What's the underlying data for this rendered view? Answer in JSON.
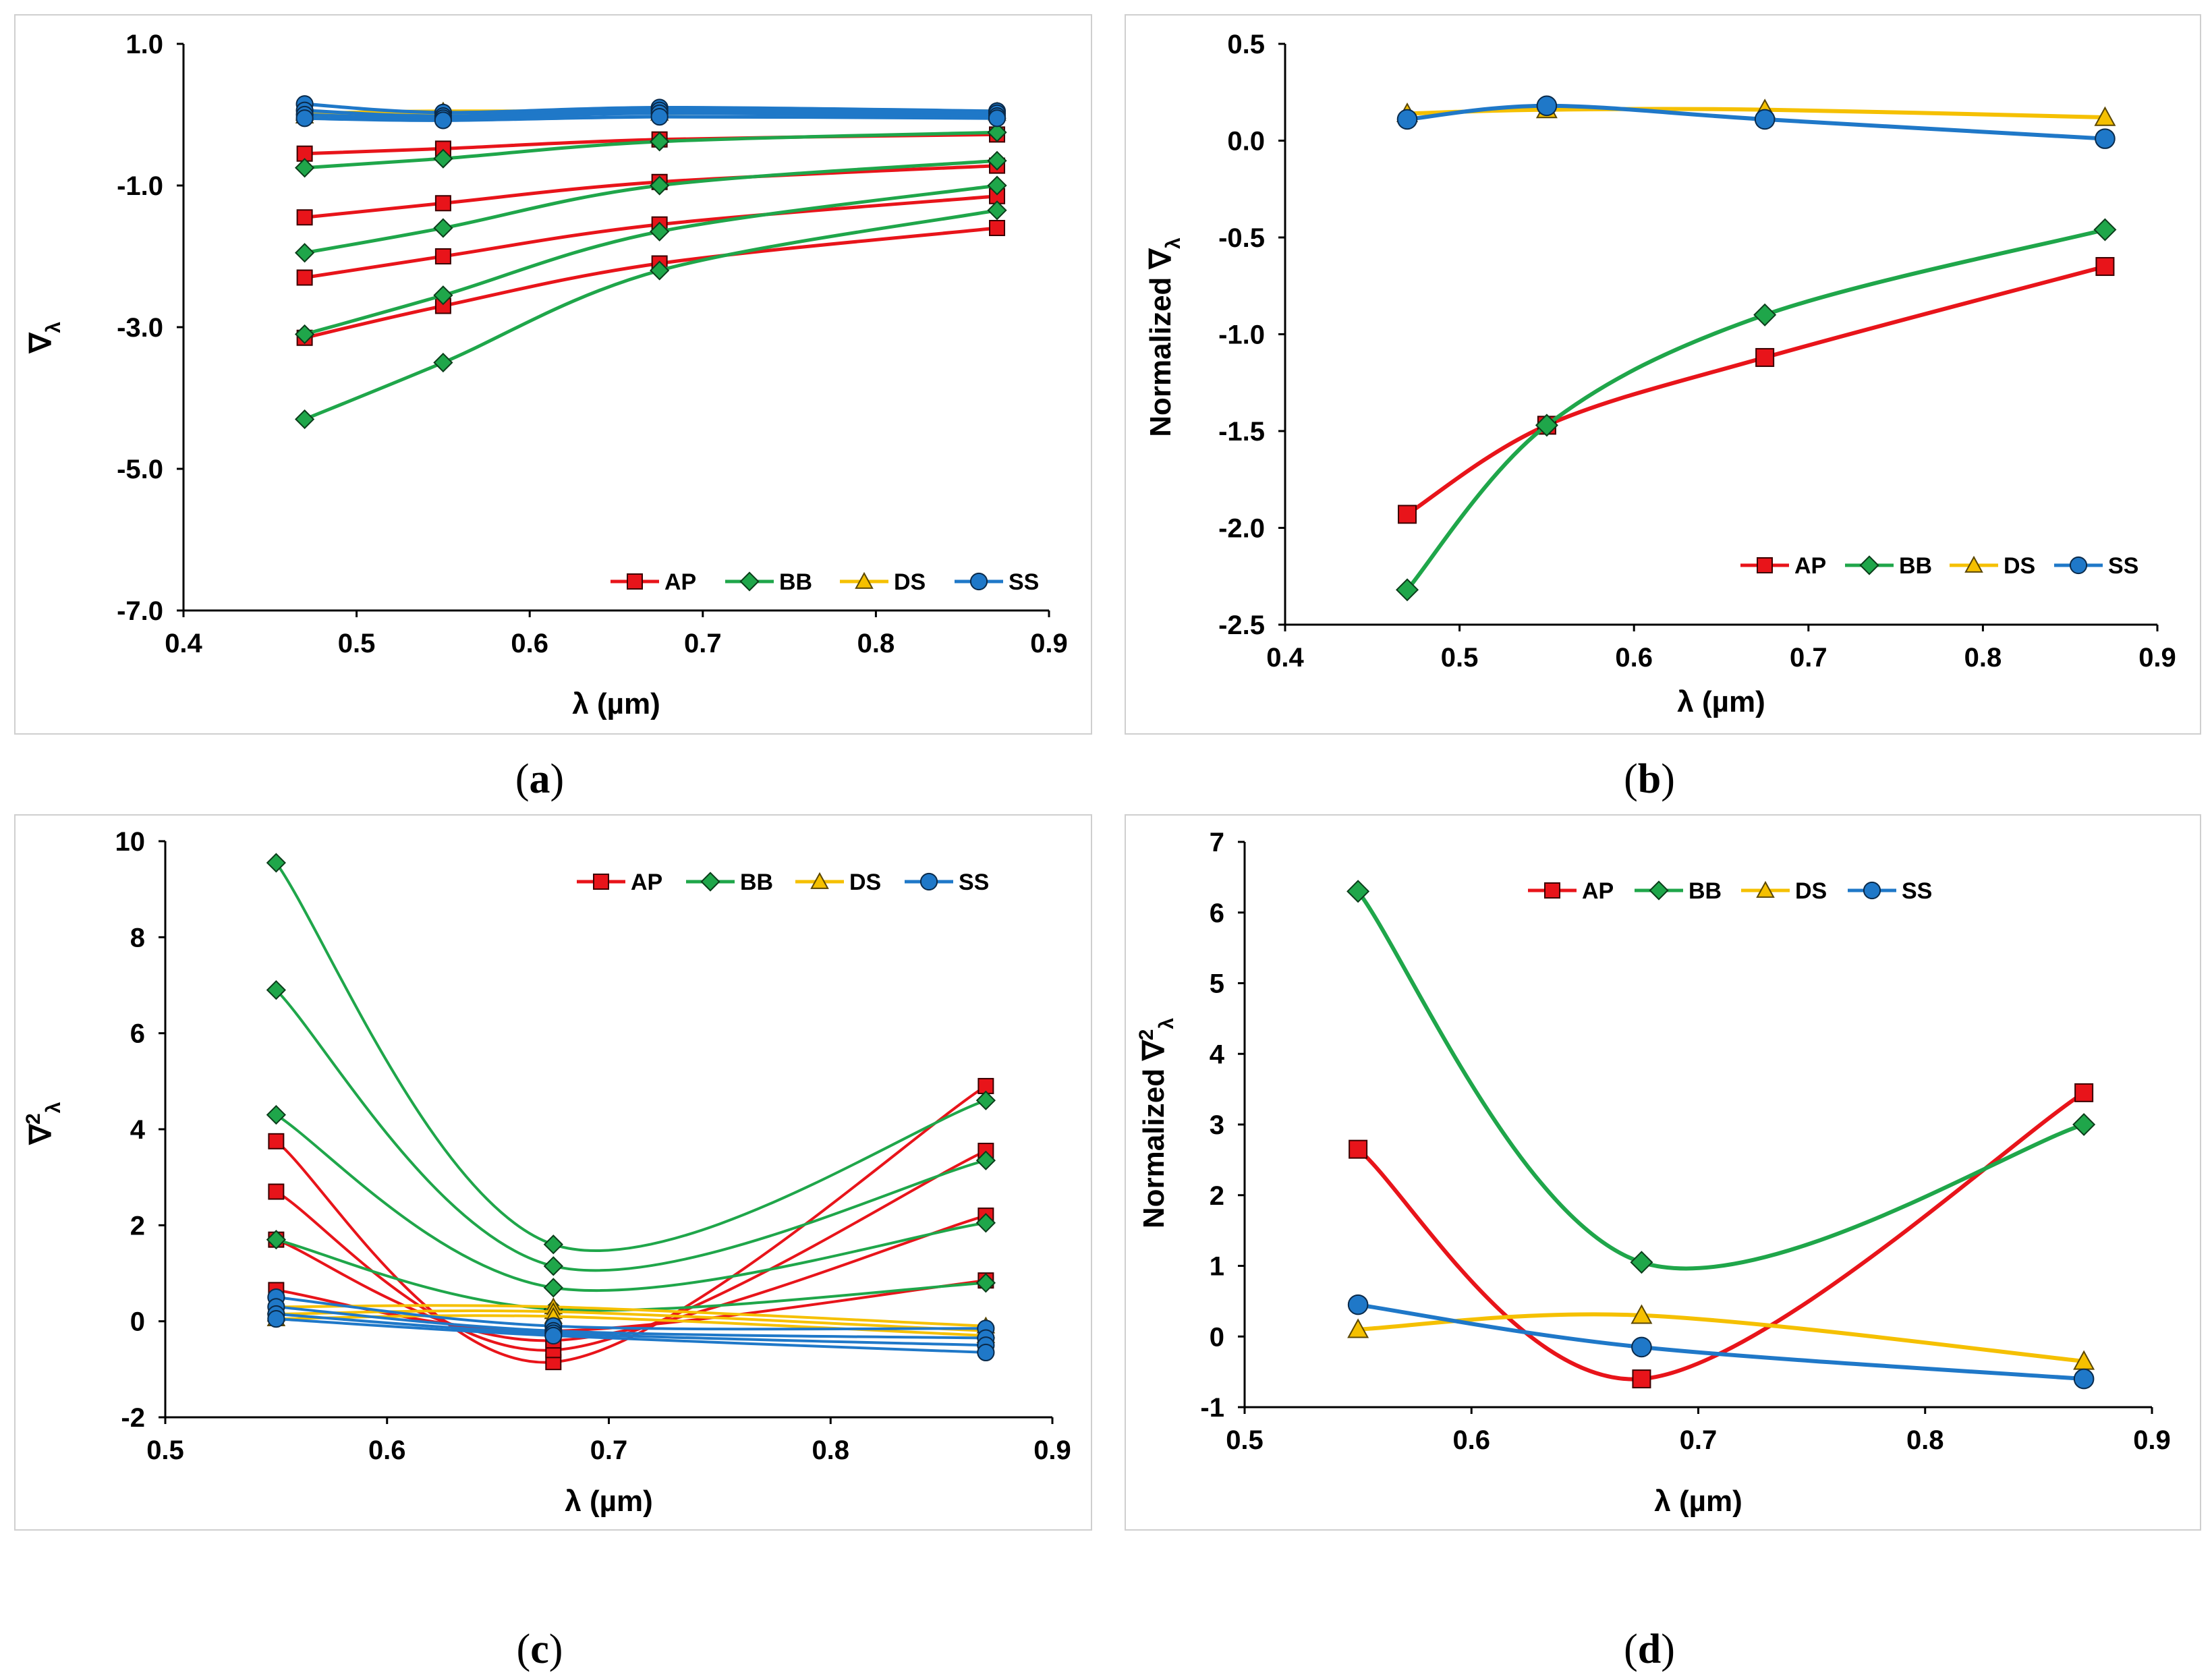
{
  "colors": {
    "AP": "#e8141a",
    "BB": "#1fa64a",
    "DS": "#f5c000",
    "SS": "#1f78c8"
  },
  "chart_data": [
    {
      "type": "line",
      "caption": "a",
      "xlabel": "λ (µm)",
      "ylabel": "∇",
      "ylabel_sub": "λ",
      "xlim": [
        0.4,
        0.9
      ],
      "ylim": [
        -7.0,
        1.0
      ],
      "xticks": [
        "0.4",
        "0.5",
        "0.6",
        "0.7",
        "0.8",
        "0.9"
      ],
      "yticks": [
        "1.0",
        "-1.0",
        "-3.0",
        "-5.0",
        "-7.0"
      ],
      "ytick_values": [
        1.0,
        -1.0,
        -3.0,
        -5.0,
        -7.0
      ],
      "x": [
        0.47,
        0.55,
        0.675,
        0.87
      ],
      "legend": [
        "AP",
        "BB",
        "DS",
        "SS"
      ],
      "series": [
        {
          "name": "AP",
          "values": [
            -0.55,
            -0.48,
            -0.35,
            -0.28
          ]
        },
        {
          "name": "AP",
          "values": [
            -1.45,
            -1.25,
            -0.95,
            -0.72
          ]
        },
        {
          "name": "AP",
          "values": [
            -2.3,
            -2.0,
            -1.55,
            -1.15
          ]
        },
        {
          "name": "AP",
          "values": [
            -3.15,
            -2.7,
            -2.1,
            -1.6
          ]
        },
        {
          "name": "BB",
          "values": [
            -0.75,
            -0.62,
            -0.38,
            -0.25
          ]
        },
        {
          "name": "BB",
          "values": [
            -1.95,
            -1.6,
            -1.0,
            -0.65
          ]
        },
        {
          "name": "BB",
          "values": [
            -3.1,
            -2.55,
            -1.65,
            -1.0
          ]
        },
        {
          "name": "BB",
          "values": [
            -4.3,
            -3.5,
            -2.2,
            -1.35
          ]
        },
        {
          "name": "DS",
          "values": [
            0.02,
            0.05,
            0.05,
            0.05
          ]
        },
        {
          "name": "DS",
          "values": [
            -0.02,
            0.02,
            0.02,
            0.02
          ]
        },
        {
          "name": "SS",
          "values": [
            0.15,
            0.03,
            0.1,
            0.05
          ]
        },
        {
          "name": "SS",
          "values": [
            0.06,
            -0.02,
            0.06,
            0.02
          ]
        },
        {
          "name": "SS",
          "values": [
            0.0,
            -0.05,
            0.02,
            -0.02
          ]
        },
        {
          "name": "SS",
          "values": [
            -0.05,
            -0.08,
            -0.03,
            -0.05
          ]
        }
      ]
    },
    {
      "type": "line",
      "caption": "b",
      "xlabel": "λ (µm)",
      "ylabel": "Normalized  ∇",
      "ylabel_sub": "λ",
      "xlim": [
        0.4,
        0.9
      ],
      "ylim": [
        -2.5,
        0.5
      ],
      "xticks": [
        "0.4",
        "0.5",
        "0.6",
        "0.7",
        "0.8",
        "0.9"
      ],
      "yticks": [
        "0.5",
        "0.0",
        "-0.5",
        "-1.0",
        "-1.5",
        "-2.0",
        "-2.5"
      ],
      "ytick_values": [
        0.5,
        0.0,
        -0.5,
        -1.0,
        -1.5,
        -2.0,
        -2.5
      ],
      "x": [
        0.47,
        0.55,
        0.675,
        0.87
      ],
      "legend": [
        "AP",
        "BB",
        "DS",
        "SS"
      ],
      "series": [
        {
          "name": "AP",
          "values": [
            -1.93,
            -1.47,
            -1.12,
            -0.65
          ]
        },
        {
          "name": "BB",
          "values": [
            -2.32,
            -1.47,
            -0.9,
            -0.46
          ]
        },
        {
          "name": "DS",
          "values": [
            0.14,
            0.16,
            0.16,
            0.12
          ]
        },
        {
          "name": "SS",
          "values": [
            0.11,
            0.18,
            0.11,
            0.01
          ]
        }
      ]
    },
    {
      "type": "line",
      "caption": "c",
      "xlabel": "λ (µm)",
      "ylabel": "∇",
      "ylabel_sup": "2",
      "ylabel_sub": "λ",
      "xlim": [
        0.5,
        0.9
      ],
      "ylim": [
        -2,
        10
      ],
      "xticks": [
        "0.5",
        "0.6",
        "0.7",
        "0.8",
        "0.9"
      ],
      "yticks": [
        "10",
        "8",
        "6",
        "4",
        "2",
        "0",
        "-2"
      ],
      "ytick_values": [
        10,
        8,
        6,
        4,
        2,
        0,
        -2
      ],
      "x": [
        0.55,
        0.675,
        0.87
      ],
      "legend": [
        "AP",
        "BB",
        "DS",
        "SS"
      ],
      "series": [
        {
          "name": "AP",
          "values": [
            3.75,
            -0.85,
            4.9
          ]
        },
        {
          "name": "AP",
          "values": [
            2.7,
            -0.6,
            3.55
          ]
        },
        {
          "name": "AP",
          "values": [
            1.7,
            -0.4,
            2.2
          ]
        },
        {
          "name": "AP",
          "values": [
            0.65,
            -0.2,
            0.85
          ]
        },
        {
          "name": "BB",
          "values": [
            9.55,
            1.6,
            4.6
          ]
        },
        {
          "name": "BB",
          "values": [
            6.9,
            1.15,
            3.35
          ]
        },
        {
          "name": "BB",
          "values": [
            4.3,
            0.7,
            2.05
          ]
        },
        {
          "name": "BB",
          "values": [
            1.7,
            0.25,
            0.8
          ]
        },
        {
          "name": "DS",
          "values": [
            0.3,
            0.3,
            -0.1
          ]
        },
        {
          "name": "DS",
          "values": [
            0.15,
            0.2,
            -0.2
          ]
        },
        {
          "name": "DS",
          "values": [
            0.05,
            0.1,
            -0.3
          ]
        },
        {
          "name": "SS",
          "values": [
            0.5,
            -0.1,
            -0.15
          ]
        },
        {
          "name": "SS",
          "values": [
            0.3,
            -0.2,
            -0.35
          ]
        },
        {
          "name": "SS",
          "values": [
            0.15,
            -0.25,
            -0.5
          ]
        },
        {
          "name": "SS",
          "values": [
            0.05,
            -0.3,
            -0.65
          ]
        }
      ]
    },
    {
      "type": "line",
      "caption": "d",
      "xlabel": "λ (µm)",
      "ylabel": "Normalized ∇",
      "ylabel_sup": "2",
      "ylabel_sub": "λ",
      "xlim": [
        0.5,
        0.9
      ],
      "ylim": [
        -1,
        7
      ],
      "xticks": [
        "0.5",
        "0.6",
        "0.7",
        "0.8",
        "0.9"
      ],
      "yticks": [
        "7",
        "6",
        "5",
        "4",
        "3",
        "2",
        "1",
        "0",
        "-1"
      ],
      "ytick_values": [
        7,
        6,
        5,
        4,
        3,
        2,
        1,
        0,
        -1
      ],
      "x": [
        0.55,
        0.675,
        0.87
      ],
      "legend": [
        "AP",
        "BB",
        "DS",
        "SS"
      ],
      "series": [
        {
          "name": "AP",
          "values": [
            2.65,
            -0.6,
            3.45
          ]
        },
        {
          "name": "BB",
          "values": [
            6.3,
            1.05,
            3.0
          ]
        },
        {
          "name": "DS",
          "values": [
            0.1,
            0.3,
            -0.35
          ]
        },
        {
          "name": "SS",
          "values": [
            0.45,
            -0.15,
            -0.6
          ]
        }
      ]
    }
  ]
}
